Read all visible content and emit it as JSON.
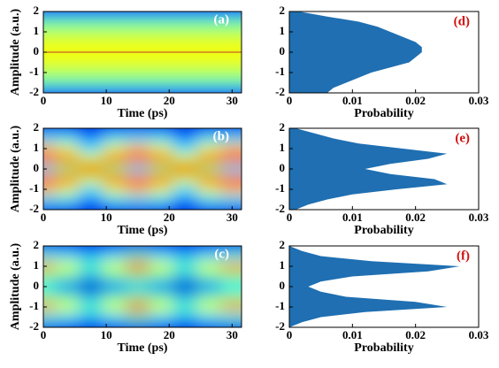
{
  "chart_data": [
    {
      "type": "heatmap",
      "label": "(a)",
      "xlabel": "Time (ps)",
      "ylabel": "Amplitude (a.u.)",
      "xlim": [
        0,
        31.5
      ],
      "xticks": [
        0,
        10,
        20,
        30
      ],
      "ylim": [
        -2,
        2
      ],
      "yticks": [
        -2,
        -1,
        0,
        1,
        2
      ],
      "x": [
        0,
        3.75,
        7.5,
        11.25,
        15,
        18.75,
        22.5,
        26.25,
        30
      ],
      "y": [
        2,
        1.5,
        1,
        0.5,
        0,
        -0.5,
        -1,
        -1.5,
        -2
      ],
      "z": [
        [
          0.15,
          0.15,
          0.15,
          0.15,
          0.15,
          0.15,
          0.15,
          0.15,
          0.15
        ],
        [
          0.45,
          0.45,
          0.45,
          0.45,
          0.45,
          0.45,
          0.45,
          0.45,
          0.45
        ],
        [
          0.55,
          0.55,
          0.55,
          0.55,
          0.55,
          0.55,
          0.55,
          0.55,
          0.55
        ],
        [
          0.6,
          0.6,
          0.6,
          0.6,
          0.6,
          0.6,
          0.6,
          0.6,
          0.6
        ],
        [
          0.62,
          0.62,
          0.62,
          0.62,
          0.62,
          0.62,
          0.62,
          0.62,
          0.62
        ],
        [
          0.6,
          0.6,
          0.6,
          0.6,
          0.6,
          0.6,
          0.6,
          0.6,
          0.6
        ],
        [
          0.55,
          0.55,
          0.55,
          0.55,
          0.55,
          0.55,
          0.55,
          0.55,
          0.55
        ],
        [
          0.45,
          0.45,
          0.45,
          0.45,
          0.45,
          0.45,
          0.45,
          0.45,
          0.45
        ],
        [
          0.15,
          0.15,
          0.15,
          0.15,
          0.15,
          0.15,
          0.15,
          0.15,
          0.15
        ]
      ]
    },
    {
      "type": "heatmap",
      "label": "(b)",
      "xlabel": "Time (ps)",
      "ylabel": "Amplitude (a.u.)",
      "xlim": [
        0,
        31.5
      ],
      "xticks": [
        0,
        10,
        20,
        30
      ],
      "ylim": [
        -2,
        2
      ],
      "yticks": [
        -2,
        -1,
        0,
        1,
        2
      ],
      "x": [
        0,
        3.75,
        7.5,
        11.25,
        15,
        18.75,
        22.5,
        26.25,
        30
      ],
      "y": [
        2,
        1.5,
        1,
        0.5,
        0,
        -0.5,
        -1,
        -1.5,
        -2
      ],
      "z": [
        [
          0.1,
          0.1,
          0.1,
          0.1,
          0.1,
          0.1,
          0.1,
          0.1,
          0.1
        ],
        [
          0.35,
          0.35,
          0.25,
          0.35,
          0.35,
          0.35,
          0.25,
          0.35,
          0.35
        ],
        [
          0.7,
          0.6,
          0.35,
          0.6,
          0.7,
          0.6,
          0.35,
          0.6,
          0.7
        ],
        [
          0.85,
          0.8,
          0.6,
          0.8,
          0.85,
          0.8,
          0.6,
          0.8,
          0.85
        ],
        [
          0.35,
          0.5,
          0.9,
          0.5,
          0.35,
          0.5,
          0.9,
          0.5,
          0.35
        ],
        [
          0.85,
          0.8,
          0.6,
          0.8,
          0.85,
          0.8,
          0.6,
          0.8,
          0.85
        ],
        [
          0.7,
          0.6,
          0.35,
          0.6,
          0.7,
          0.6,
          0.35,
          0.6,
          0.7
        ],
        [
          0.35,
          0.35,
          0.25,
          0.35,
          0.35,
          0.35,
          0.25,
          0.35,
          0.35
        ],
        [
          0.1,
          0.1,
          0.1,
          0.1,
          0.1,
          0.1,
          0.1,
          0.1,
          0.1
        ]
      ]
    },
    {
      "type": "heatmap",
      "label": "(c)",
      "xlabel": "Time (ps)",
      "ylabel": "Amplitude (a.u.)",
      "xlim": [
        0,
        31.5
      ],
      "xticks": [
        0,
        10,
        20,
        30
      ],
      "ylim": [
        -2,
        2
      ],
      "yticks": [
        -2,
        -1,
        0,
        1,
        2
      ],
      "x": [
        0,
        3.75,
        7.5,
        11.25,
        15,
        18.75,
        22.5,
        26.25,
        30
      ],
      "y": [
        2,
        1.5,
        1,
        0.5,
        0,
        -0.5,
        -1,
        -1.5,
        -2
      ],
      "z": [
        [
          0.1,
          0.1,
          0.1,
          0.1,
          0.1,
          0.1,
          0.1,
          0.1,
          0.1
        ],
        [
          0.4,
          0.35,
          0.3,
          0.35,
          0.45,
          0.35,
          0.3,
          0.35,
          0.4
        ],
        [
          0.75,
          0.6,
          0.45,
          0.6,
          0.85,
          0.6,
          0.45,
          0.6,
          0.75
        ],
        [
          0.5,
          0.45,
          0.3,
          0.45,
          0.5,
          0.45,
          0.3,
          0.45,
          0.5
        ],
        [
          0.35,
          0.2,
          0.05,
          0.2,
          0.3,
          0.2,
          0.05,
          0.2,
          0.35
        ],
        [
          0.5,
          0.45,
          0.3,
          0.45,
          0.5,
          0.45,
          0.3,
          0.45,
          0.5
        ],
        [
          0.75,
          0.6,
          0.45,
          0.6,
          0.85,
          0.6,
          0.45,
          0.6,
          0.75
        ],
        [
          0.4,
          0.35,
          0.3,
          0.35,
          0.45,
          0.35,
          0.3,
          0.35,
          0.4
        ],
        [
          0.1,
          0.1,
          0.1,
          0.1,
          0.1,
          0.1,
          0.1,
          0.1,
          0.1
        ]
      ]
    },
    {
      "type": "area",
      "label": "(d)",
      "xlabel": "Probability",
      "color": "#1f6fb2",
      "xlim": [
        0,
        0.03
      ],
      "xticks": [
        0,
        0.01,
        0.02,
        0.03
      ],
      "ylim": [
        -2,
        2
      ],
      "yticks": [
        -2,
        -1,
        0,
        1,
        2
      ],
      "y": [
        -2,
        -1.75,
        -1.5,
        -1.25,
        -1,
        -0.75,
        -0.5,
        -0.25,
        0,
        0.25,
        0.5,
        0.75,
        1,
        1.25,
        1.5,
        1.75,
        2
      ],
      "values": [
        0.006,
        0.007,
        0.009,
        0.011,
        0.013,
        0.016,
        0.019,
        0.02,
        0.021,
        0.021,
        0.02,
        0.018,
        0.016,
        0.014,
        0.011,
        0.006,
        0.0015
      ]
    },
    {
      "type": "area",
      "label": "(e)",
      "xlabel": "Probability",
      "color": "#1f6fb2",
      "xlim": [
        0,
        0.03
      ],
      "xticks": [
        0,
        0.01,
        0.02,
        0.03
      ],
      "ylim": [
        -2,
        2
      ],
      "yticks": [
        -2,
        -1,
        0,
        1,
        2
      ],
      "y": [
        -2,
        -1.75,
        -1.5,
        -1.25,
        -1,
        -0.75,
        -0.5,
        -0.25,
        0,
        0.25,
        0.5,
        0.75,
        1,
        1.25,
        1.5,
        1.75,
        2
      ],
      "values": [
        0.001,
        0.003,
        0.006,
        0.01,
        0.017,
        0.025,
        0.023,
        0.016,
        0.012,
        0.016,
        0.022,
        0.025,
        0.018,
        0.011,
        0.007,
        0.004,
        0.001
      ]
    },
    {
      "type": "area",
      "label": "(f)",
      "xlabel": "Probability",
      "color": "#1f6fb2",
      "xlim": [
        0,
        0.03
      ],
      "xticks": [
        0,
        0.01,
        0.02,
        0.03
      ],
      "ylim": [
        -2,
        2
      ],
      "yticks": [
        -2,
        -1,
        0,
        1,
        2
      ],
      "y": [
        -2,
        -1.75,
        -1.5,
        -1.25,
        -1,
        -0.75,
        -0.5,
        -0.25,
        0,
        0.25,
        0.5,
        0.75,
        1,
        1.25,
        1.5,
        1.75,
        2
      ],
      "values": [
        0,
        0.002,
        0.005,
        0.012,
        0.025,
        0.02,
        0.009,
        0.005,
        0.003,
        0.005,
        0.01,
        0.022,
        0.027,
        0.013,
        0.005,
        0.002,
        0
      ]
    }
  ]
}
